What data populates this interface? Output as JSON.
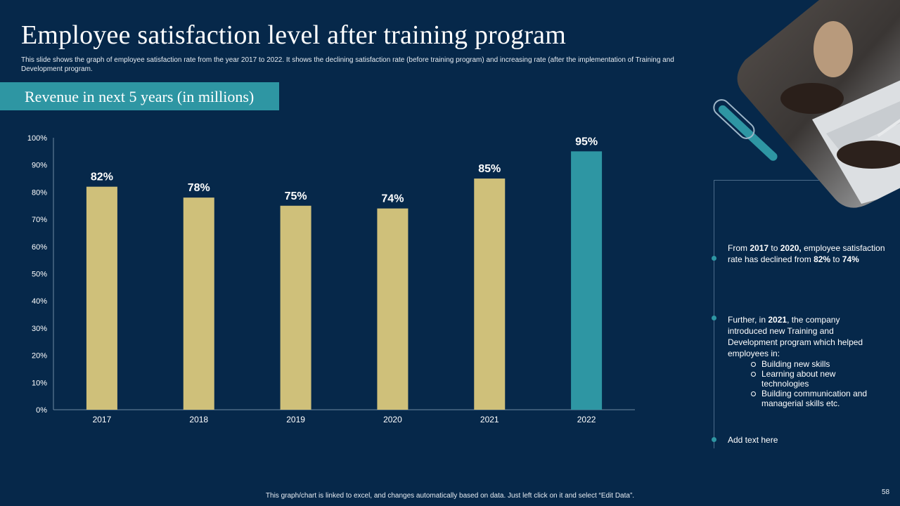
{
  "slide": {
    "title": "Employee satisfaction level after training program",
    "subtitle": "This slide shows the graph of employee satisfaction rate from the year 2017 to 2022. It shows the declining satisfaction rate (before training program) and increasing rate (after the implementation of Training and Development program.",
    "banner": "Revenue in next 5 years (in millions)",
    "footer": "This graph/chart is linked to excel, and changes automatically based on data. Just left click on it and select “Edit Data”.",
    "page_number": "58"
  },
  "notes": {
    "note1": {
      "p1": "From ",
      "y1": "2017",
      "p2": " to ",
      "y2": "2020,",
      "p3": " employee satisfaction rate has declined from ",
      "v1": "82%",
      "p4": " to ",
      "v2": "74%"
    },
    "note2": {
      "p1": "Further, in ",
      "y": "2021",
      "p2": ", the company introduced new Training and Development program which helped employees in:",
      "items": [
        "Building new skills",
        "Learning about new technologies",
        "Building communication and managerial skills etc."
      ]
    },
    "note3": "Add text here"
  },
  "colors": {
    "background": "#06284a",
    "bar_before": "#cfc07a",
    "bar_after": "#2e96a3",
    "accent": "#2e96a3"
  },
  "chart_data": {
    "type": "bar",
    "categories": [
      "2017",
      "2018",
      "2019",
      "2020",
      "2021",
      "2022"
    ],
    "values": [
      82,
      78,
      75,
      74,
      85,
      95
    ],
    "data_labels": [
      "82%",
      "78%",
      "75%",
      "74%",
      "85%",
      "95%"
    ],
    "highlight_index": 5,
    "ylim": [
      0,
      100
    ],
    "y_ticks": [
      "0%",
      "10%",
      "20%",
      "30%",
      "40%",
      "50%",
      "60%",
      "70%",
      "80%",
      "90%",
      "100%"
    ],
    "title": "",
    "xlabel": "",
    "ylabel": "",
    "legend": "none",
    "grid": false
  }
}
